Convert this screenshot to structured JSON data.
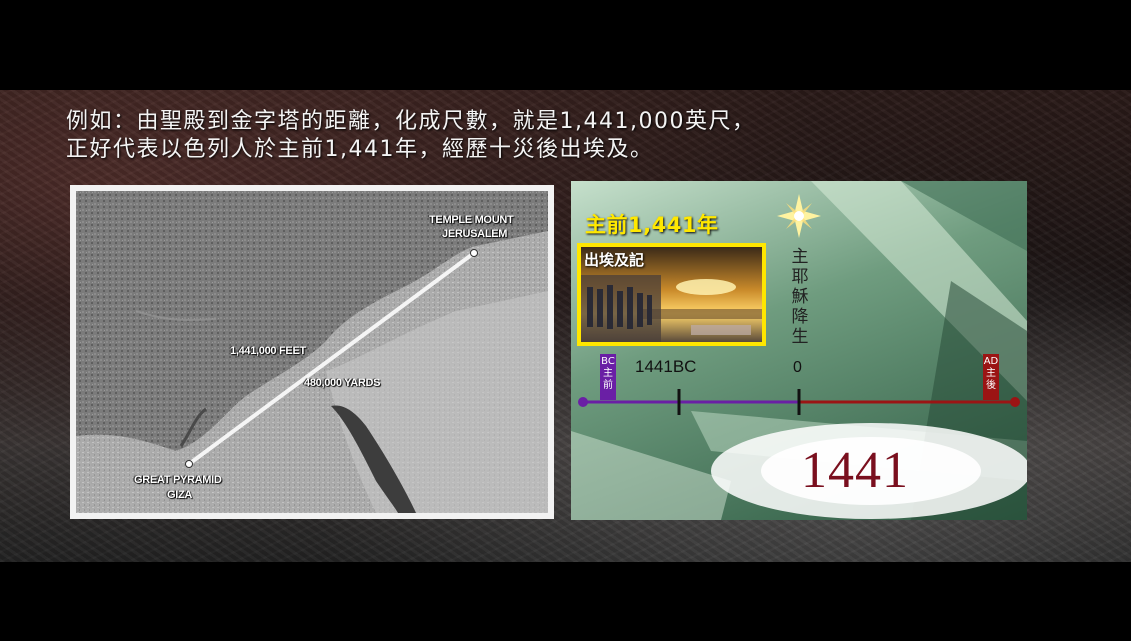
{
  "caption": {
    "line1": "例如：由聖殿到金字塔的距離，化成尺數，就是1,441,000英尺，",
    "line2": "正好代表以色列人於主前1,441年，經歷十災後出埃及。"
  },
  "map": {
    "labels": {
      "temple_line1": "TEMPLE MOUNT",
      "temple_line2": "JERUSALEM",
      "feet": "1,441,000 FEET",
      "yards": "480,000 YARDS",
      "pyramid_line1": "GREAT PYRAMID",
      "pyramid_line2": "GIZA"
    }
  },
  "timeline": {
    "title": "主前1,441年",
    "exodus_title": "出埃及記",
    "jesus_birth": [
      "主",
      "耶",
      "穌",
      "降",
      "生"
    ],
    "bc_tag": [
      "BC",
      "主",
      "前"
    ],
    "ad_tag": [
      "AD",
      "主",
      "後"
    ],
    "label_1441bc": "1441BC",
    "label_zero": "0",
    "big_number": "1441",
    "colors": {
      "bc_line": "#6a1fa5",
      "ad_line": "#9b1414",
      "title": "#ffe800"
    }
  }
}
